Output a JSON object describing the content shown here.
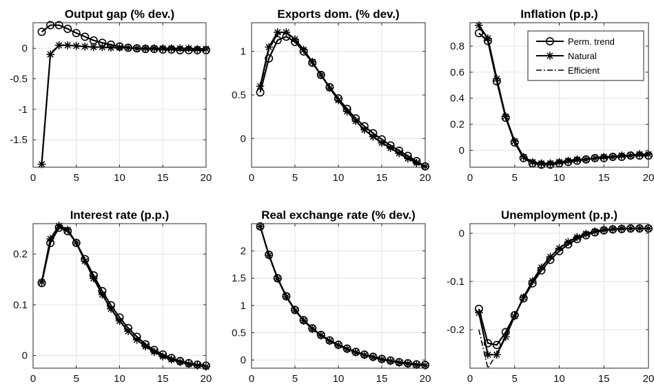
{
  "chart_data": [
    {
      "type": "line",
      "title": "Output gap (% dev.)",
      "xlim": [
        0,
        20
      ],
      "ylim": [
        -1.95,
        0.42
      ],
      "xticks": [
        0,
        5,
        10,
        15,
        20
      ],
      "yticks": [
        -1.5,
        -1,
        -0.5,
        0
      ],
      "xticklabels": [
        "0",
        "5",
        "10",
        "15",
        "20"
      ],
      "yticklabels": [
        "-1.5",
        "-1",
        "-0.5",
        "0"
      ],
      "grid": true,
      "x": [
        1,
        2,
        3,
        4,
        5,
        6,
        7,
        8,
        9,
        10,
        11,
        12,
        13,
        14,
        15,
        16,
        17,
        18,
        19,
        20
      ],
      "series": [
        {
          "name": "Perm. trend",
          "marker": "circle",
          "style": "solid",
          "values": [
            0.27,
            0.38,
            0.38,
            0.32,
            0.25,
            0.19,
            0.13,
            0.09,
            0.06,
            0.03,
            0.01,
            0.0,
            -0.01,
            -0.01,
            -0.02,
            -0.02,
            -0.03,
            -0.03,
            -0.03,
            -0.03
          ]
        },
        {
          "name": "Natural",
          "marker": "asterisk",
          "style": "solid",
          "values": [
            -1.9,
            -0.1,
            0.05,
            0.05,
            0.04,
            0.03,
            0.02,
            0.02,
            0.01,
            0.01,
            0.01,
            0.0,
            0.0,
            0.0,
            0.0,
            0.0,
            0.0,
            0.0,
            -0.01,
            -0.01
          ]
        },
        {
          "name": "Efficient",
          "marker": "none",
          "style": "dashdot",
          "values": [
            -1.85,
            -0.08,
            0.05,
            0.05,
            0.04,
            0.03,
            0.02,
            0.02,
            0.01,
            0.01,
            0.01,
            0.0,
            0.0,
            0.0,
            0.0,
            0.0,
            0.0,
            0.0,
            -0.01,
            -0.01
          ]
        }
      ]
    },
    {
      "type": "line",
      "title": "Exports dom. (% dev.)",
      "xlim": [
        0,
        20
      ],
      "ylim": [
        -0.33,
        1.33
      ],
      "xticks": [
        0,
        5,
        10,
        15,
        20
      ],
      "yticks": [
        0,
        0.5,
        1
      ],
      "xticklabels": [
        "0",
        "5",
        "10",
        "15",
        "20"
      ],
      "yticklabels": [
        "0",
        "0.5",
        "1"
      ],
      "grid": true,
      "x": [
        1,
        2,
        3,
        4,
        5,
        6,
        7,
        8,
        9,
        10,
        11,
        12,
        13,
        14,
        15,
        16,
        17,
        18,
        19,
        20
      ],
      "series": [
        {
          "name": "Perm. trend",
          "marker": "circle",
          "style": "solid",
          "values": [
            0.53,
            0.92,
            1.13,
            1.17,
            1.11,
            1.0,
            0.87,
            0.73,
            0.59,
            0.46,
            0.34,
            0.23,
            0.14,
            0.06,
            -0.01,
            -0.08,
            -0.14,
            -0.2,
            -0.26,
            -0.32
          ]
        },
        {
          "name": "Natural",
          "marker": "asterisk",
          "style": "solid",
          "values": [
            0.6,
            1.05,
            1.22,
            1.22,
            1.14,
            1.02,
            0.88,
            0.73,
            0.58,
            0.44,
            0.31,
            0.2,
            0.1,
            0.02,
            -0.05,
            -0.11,
            -0.17,
            -0.23,
            -0.28,
            -0.32
          ]
        },
        {
          "name": "Efficient",
          "marker": "none",
          "style": "dashdot",
          "values": [
            0.58,
            1.02,
            1.2,
            1.21,
            1.13,
            1.01,
            0.87,
            0.73,
            0.58,
            0.44,
            0.32,
            0.21,
            0.11,
            0.03,
            -0.04,
            -0.1,
            -0.16,
            -0.22,
            -0.27,
            -0.31
          ]
        }
      ]
    },
    {
      "type": "line",
      "title": "Inflation (p.p.)",
      "xlim": [
        0,
        20
      ],
      "ylim": [
        -0.13,
        0.98
      ],
      "xticks": [
        0,
        5,
        10,
        15,
        20
      ],
      "yticks": [
        0,
        0.2,
        0.4,
        0.6,
        0.8
      ],
      "xticklabels": [
        "0",
        "5",
        "10",
        "15",
        "20"
      ],
      "yticklabels": [
        "0",
        "0.2",
        "0.4",
        "0.6",
        "0.8"
      ],
      "grid": true,
      "legend": {
        "position": "top-right",
        "entries": [
          "Perm. trend",
          "Natural",
          "Efficient"
        ]
      },
      "x": [
        1,
        2,
        3,
        4,
        5,
        6,
        7,
        8,
        9,
        10,
        11,
        12,
        13,
        14,
        15,
        16,
        17,
        18,
        19,
        20
      ],
      "series": [
        {
          "name": "Perm. trend",
          "marker": "circle",
          "style": "solid",
          "values": [
            0.9,
            0.84,
            0.53,
            0.25,
            0.06,
            -0.06,
            -0.1,
            -0.11,
            -0.11,
            -0.1,
            -0.09,
            -0.08,
            -0.07,
            -0.06,
            -0.06,
            -0.05,
            -0.05,
            -0.04,
            -0.04,
            -0.04
          ]
        },
        {
          "name": "Natural",
          "marker": "asterisk",
          "style": "solid",
          "values": [
            0.96,
            0.86,
            0.55,
            0.26,
            0.07,
            -0.05,
            -0.09,
            -0.1,
            -0.1,
            -0.09,
            -0.08,
            -0.07,
            -0.07,
            -0.06,
            -0.05,
            -0.05,
            -0.04,
            -0.04,
            -0.03,
            -0.03
          ]
        },
        {
          "name": "Efficient",
          "marker": "none",
          "style": "dashdot",
          "values": [
            0.95,
            0.85,
            0.54,
            0.25,
            0.06,
            -0.06,
            -0.1,
            -0.1,
            -0.1,
            -0.09,
            -0.08,
            -0.07,
            -0.07,
            -0.06,
            -0.05,
            -0.05,
            -0.04,
            -0.04,
            -0.03,
            -0.03
          ]
        }
      ]
    },
    {
      "type": "line",
      "title": "Interest rate (p.p.)",
      "xlim": [
        0,
        20
      ],
      "ylim": [
        -0.025,
        0.26
      ],
      "xticks": [
        0,
        5,
        10,
        15,
        20
      ],
      "yticks": [
        0,
        0.1,
        0.2
      ],
      "xticklabels": [
        "0",
        "5",
        "10",
        "15",
        "20"
      ],
      "yticklabels": [
        "0",
        "0.1",
        "0.2"
      ],
      "grid": true,
      "x": [
        1,
        2,
        3,
        4,
        5,
        6,
        7,
        8,
        9,
        10,
        11,
        12,
        13,
        14,
        15,
        16,
        17,
        18,
        19,
        20
      ],
      "series": [
        {
          "name": "Perm. trend",
          "marker": "circle",
          "style": "solid",
          "values": [
            0.143,
            0.222,
            0.252,
            0.245,
            0.222,
            0.19,
            0.158,
            0.127,
            0.099,
            0.075,
            0.054,
            0.037,
            0.022,
            0.011,
            0.002,
            -0.005,
            -0.011,
            -0.015,
            -0.018,
            -0.02
          ]
        },
        {
          "name": "Natural",
          "marker": "asterisk",
          "style": "solid",
          "values": [
            0.145,
            0.23,
            0.256,
            0.248,
            0.222,
            0.186,
            0.152,
            0.12,
            0.092,
            0.068,
            0.048,
            0.031,
            0.018,
            0.007,
            -0.002,
            -0.008,
            -0.013,
            -0.017,
            -0.02,
            -0.022
          ]
        },
        {
          "name": "Efficient",
          "marker": "none",
          "style": "dashdot",
          "values": [
            0.144,
            0.228,
            0.255,
            0.247,
            0.222,
            0.187,
            0.153,
            0.121,
            0.093,
            0.069,
            0.049,
            0.032,
            0.019,
            0.008,
            -0.001,
            -0.007,
            -0.012,
            -0.016,
            -0.019,
            -0.021
          ]
        }
      ]
    },
    {
      "type": "line",
      "title": "Real exchange rate (% dev.)",
      "xlim": [
        0,
        20
      ],
      "ylim": [
        -0.15,
        2.5
      ],
      "xticks": [
        0,
        5,
        10,
        15,
        20
      ],
      "yticks": [
        0,
        0.5,
        1,
        1.5,
        2
      ],
      "xticklabels": [
        "0",
        "5",
        "10",
        "15",
        "20"
      ],
      "yticklabels": [
        "0",
        "0.5",
        "1",
        "1.5",
        "2"
      ],
      "grid": true,
      "x": [
        1,
        2,
        3,
        4,
        5,
        6,
        7,
        8,
        9,
        10,
        11,
        12,
        13,
        14,
        15,
        16,
        17,
        18,
        19,
        20
      ],
      "series": [
        {
          "name": "Perm. trend",
          "marker": "circle",
          "style": "solid",
          "values": [
            2.45,
            1.93,
            1.5,
            1.17,
            0.92,
            0.73,
            0.58,
            0.46,
            0.36,
            0.28,
            0.21,
            0.15,
            0.1,
            0.06,
            0.02,
            -0.01,
            -0.04,
            -0.06,
            -0.08,
            -0.09
          ]
        },
        {
          "name": "Natural",
          "marker": "asterisk",
          "style": "solid",
          "values": [
            2.45,
            1.92,
            1.49,
            1.16,
            0.91,
            0.72,
            0.57,
            0.45,
            0.35,
            0.27,
            0.2,
            0.14,
            0.09,
            0.05,
            0.01,
            -0.02,
            -0.05,
            -0.07,
            -0.09,
            -0.1
          ]
        },
        {
          "name": "Efficient",
          "marker": "none",
          "style": "dashdot",
          "values": [
            2.45,
            1.92,
            1.49,
            1.16,
            0.91,
            0.72,
            0.57,
            0.45,
            0.35,
            0.27,
            0.2,
            0.14,
            0.09,
            0.05,
            0.01,
            -0.02,
            -0.05,
            -0.07,
            -0.09,
            -0.1
          ]
        }
      ]
    },
    {
      "type": "line",
      "title": "Unemployment (p.p.)",
      "xlim": [
        0,
        20
      ],
      "ylim": [
        -0.28,
        0.02
      ],
      "xticks": [
        0,
        5,
        10,
        15,
        20
      ],
      "yticks": [
        -0.2,
        -0.1,
        0
      ],
      "xticklabels": [
        "0",
        "5",
        "10",
        "15",
        "20"
      ],
      "yticklabels": [
        "-0.2",
        "-0.1",
        "0"
      ],
      "grid": true,
      "x": [
        1,
        2,
        3,
        4,
        5,
        6,
        7,
        8,
        9,
        10,
        11,
        12,
        13,
        14,
        15,
        16,
        17,
        18,
        19,
        20
      ],
      "series": [
        {
          "name": "Perm. trend",
          "marker": "circle",
          "style": "solid",
          "values": [
            -0.157,
            -0.228,
            -0.232,
            -0.205,
            -0.17,
            -0.135,
            -0.104,
            -0.077,
            -0.055,
            -0.037,
            -0.023,
            -0.012,
            -0.004,
            0.002,
            0.006,
            0.008,
            0.009,
            0.01,
            0.01,
            0.01
          ]
        },
        {
          "name": "Natural",
          "marker": "asterisk",
          "style": "solid",
          "values": [
            -0.165,
            -0.252,
            -0.252,
            -0.215,
            -0.172,
            -0.133,
            -0.099,
            -0.071,
            -0.049,
            -0.031,
            -0.018,
            -0.008,
            -0.001,
            0.004,
            0.007,
            0.009,
            0.01,
            0.01,
            0.01,
            0.01
          ]
        },
        {
          "name": "Efficient",
          "marker": "none",
          "style": "dashdot",
          "values": [
            -0.2,
            -0.28,
            -0.25,
            -0.212,
            -0.17,
            -0.132,
            -0.098,
            -0.07,
            -0.048,
            -0.03,
            -0.017,
            -0.007,
            0.0,
            0.005,
            0.008,
            0.009,
            0.01,
            0.01,
            0.01,
            0.01
          ]
        }
      ]
    }
  ]
}
